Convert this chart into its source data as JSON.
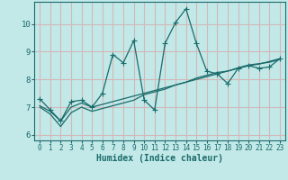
{
  "xlabel": "Humidex (Indice chaleur)",
  "bg_color": "#c2e8e8",
  "line_color": "#1a6b6b",
  "grid_color": "#d4b8b8",
  "xlim": [
    -0.5,
    23.5
  ],
  "ylim": [
    5.8,
    10.8
  ],
  "xticks": [
    0,
    1,
    2,
    3,
    4,
    5,
    6,
    7,
    8,
    9,
    10,
    11,
    12,
    13,
    14,
    15,
    16,
    17,
    18,
    19,
    20,
    21,
    22,
    23
  ],
  "yticks": [
    6,
    7,
    8,
    9,
    10
  ],
  "x": [
    0,
    1,
    2,
    3,
    4,
    5,
    6,
    7,
    8,
    9,
    10,
    11,
    12,
    13,
    14,
    15,
    16,
    17,
    18,
    19,
    20,
    21,
    22,
    23
  ],
  "line1_y": [
    7.3,
    6.9,
    6.5,
    7.2,
    7.25,
    7.0,
    7.5,
    8.9,
    8.6,
    9.4,
    7.25,
    6.9,
    9.3,
    10.05,
    10.55,
    9.3,
    8.3,
    8.2,
    7.85,
    8.4,
    8.5,
    8.4,
    8.45,
    8.75
  ],
  "line2_y": [
    7.05,
    6.85,
    6.5,
    7.0,
    7.15,
    7.0,
    7.1,
    7.2,
    7.3,
    7.4,
    7.5,
    7.6,
    7.7,
    7.8,
    7.9,
    8.0,
    8.1,
    8.2,
    8.3,
    8.4,
    8.5,
    8.55,
    8.65,
    8.75
  ],
  "line3_y": [
    7.0,
    6.75,
    6.3,
    6.8,
    7.0,
    6.85,
    6.95,
    7.05,
    7.15,
    7.25,
    7.45,
    7.55,
    7.65,
    7.8,
    7.9,
    8.05,
    8.15,
    8.25,
    8.3,
    8.42,
    8.52,
    8.57,
    8.62,
    8.72
  ]
}
